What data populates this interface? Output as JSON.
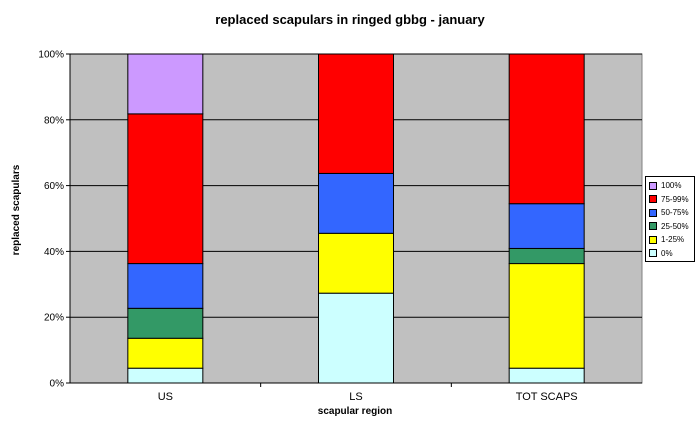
{
  "chart_data": {
    "type": "bar",
    "stacked": true,
    "title": "replaced scapulars in ringed gbbg - january",
    "xlabel": "scapular region",
    "ylabel": "replaced scapulars",
    "categories": [
      "US",
      "LS",
      "TOT SCAPS"
    ],
    "yticks": [
      "0%",
      "20%",
      "40%",
      "60%",
      "80%",
      "100%"
    ],
    "ylim": [
      0,
      100
    ],
    "grid": true,
    "legend_position": "right",
    "series": [
      {
        "name": "0%",
        "color": "#CCFFFF",
        "values": [
          4.5,
          27.3,
          4.5
        ]
      },
      {
        "name": "1-25%",
        "color": "#FFFF00",
        "values": [
          9.1,
          18.2,
          31.8
        ]
      },
      {
        "name": "25-50%",
        "color": "#339966",
        "values": [
          9.1,
          0,
          4.6
        ]
      },
      {
        "name": "50-75%",
        "color": "#3366FF",
        "values": [
          13.6,
          18.2,
          13.6
        ]
      },
      {
        "name": "75-99%",
        "color": "#FF0000",
        "values": [
          45.5,
          36.3,
          45.5
        ]
      },
      {
        "name": "100%",
        "color": "#CC99FF",
        "values": [
          18.2,
          0,
          0
        ]
      }
    ],
    "plot_background": "#C0C0C0"
  }
}
